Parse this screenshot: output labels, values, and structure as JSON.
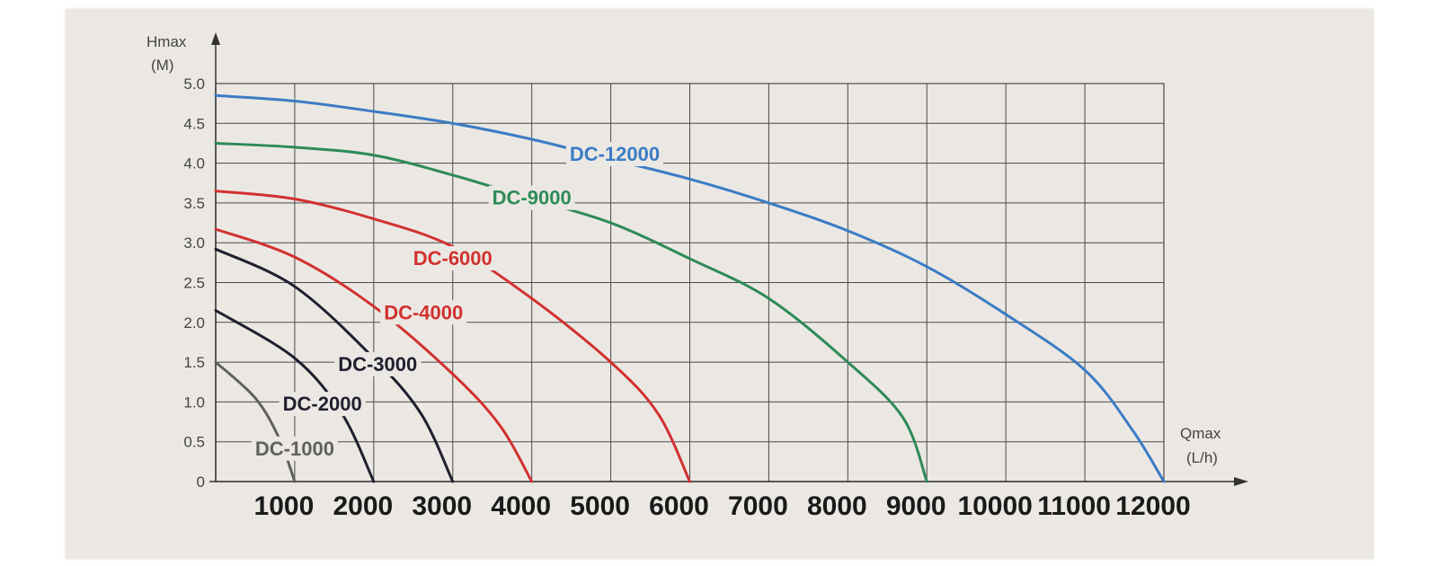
{
  "chart_data": {
    "type": "line",
    "ylabel": "Hmax",
    "yunit": "(M)",
    "xlabel": "Qmax",
    "xunit": "(L/h)",
    "xlim": [
      0,
      12000
    ],
    "ylim": [
      0,
      5.0
    ],
    "x_ticks": [
      "1000",
      "2000",
      "3000",
      "4000",
      "5000",
      "6000",
      "7000",
      "8000",
      "9000",
      "10000",
      "11000",
      "12000"
    ],
    "y_ticks": [
      "0",
      "0.5",
      "1.0",
      "1.5",
      "2.0",
      "2.5",
      "3.0",
      "3.5",
      "4.0",
      "4.5",
      "5.0"
    ],
    "grid": true,
    "series": [
      {
        "name": "DC-1000",
        "color": "#606060",
        "x": [
          0,
          500,
          800,
          1000
        ],
        "y": [
          1.5,
          1.05,
          0.55,
          0
        ],
        "label_at": [
          1000,
          0.42
        ]
      },
      {
        "name": "DC-2000",
        "color": "#1f1f2e",
        "x": [
          0,
          1000,
          1600,
          2000
        ],
        "y": [
          2.15,
          1.55,
          0.85,
          0
        ],
        "label_at": [
          1350,
          0.98
        ]
      },
      {
        "name": "DC-3000",
        "color": "#1f1f2e",
        "x": [
          0,
          1000,
          2000,
          2600,
          3000
        ],
        "y": [
          2.92,
          2.45,
          1.55,
          0.85,
          0
        ],
        "label_at": [
          2050,
          1.48
        ]
      },
      {
        "name": "DC-4000",
        "color": "#d2312f",
        "x": [
          0,
          1000,
          2000,
          3000,
          3600,
          4000
        ],
        "y": [
          3.17,
          2.82,
          2.2,
          1.35,
          0.7,
          0
        ],
        "label_at": [
          2630,
          2.13
        ]
      },
      {
        "name": "DC-6000",
        "color": "#d2312f",
        "x": [
          0,
          1000,
          2000,
          3000,
          4000,
          5000,
          5600,
          6000
        ],
        "y": [
          3.65,
          3.55,
          3.3,
          2.95,
          2.3,
          1.5,
          0.85,
          0
        ],
        "label_at": [
          3000,
          2.81
        ]
      },
      {
        "name": "DC-9000",
        "color": "#2e8b57",
        "x": [
          0,
          1000,
          2000,
          3000,
          4000,
          5000,
          6000,
          7000,
          8000,
          8700,
          9000
        ],
        "y": [
          4.25,
          4.2,
          4.1,
          3.85,
          3.55,
          3.25,
          2.8,
          2.3,
          1.5,
          0.8,
          0
        ],
        "label_at": [
          4000,
          3.57
        ]
      },
      {
        "name": "DC-12000",
        "color": "#3b7cc4",
        "x": [
          0,
          1000,
          2000,
          3000,
          4000,
          5000,
          6000,
          7000,
          8000,
          9000,
          10000,
          11000,
          11600,
          12000
        ],
        "y": [
          4.85,
          4.78,
          4.65,
          4.5,
          4.3,
          4.05,
          3.8,
          3.5,
          3.15,
          2.7,
          2.1,
          1.4,
          0.65,
          0
        ],
        "label_at": [
          5050,
          4.12
        ]
      }
    ]
  }
}
